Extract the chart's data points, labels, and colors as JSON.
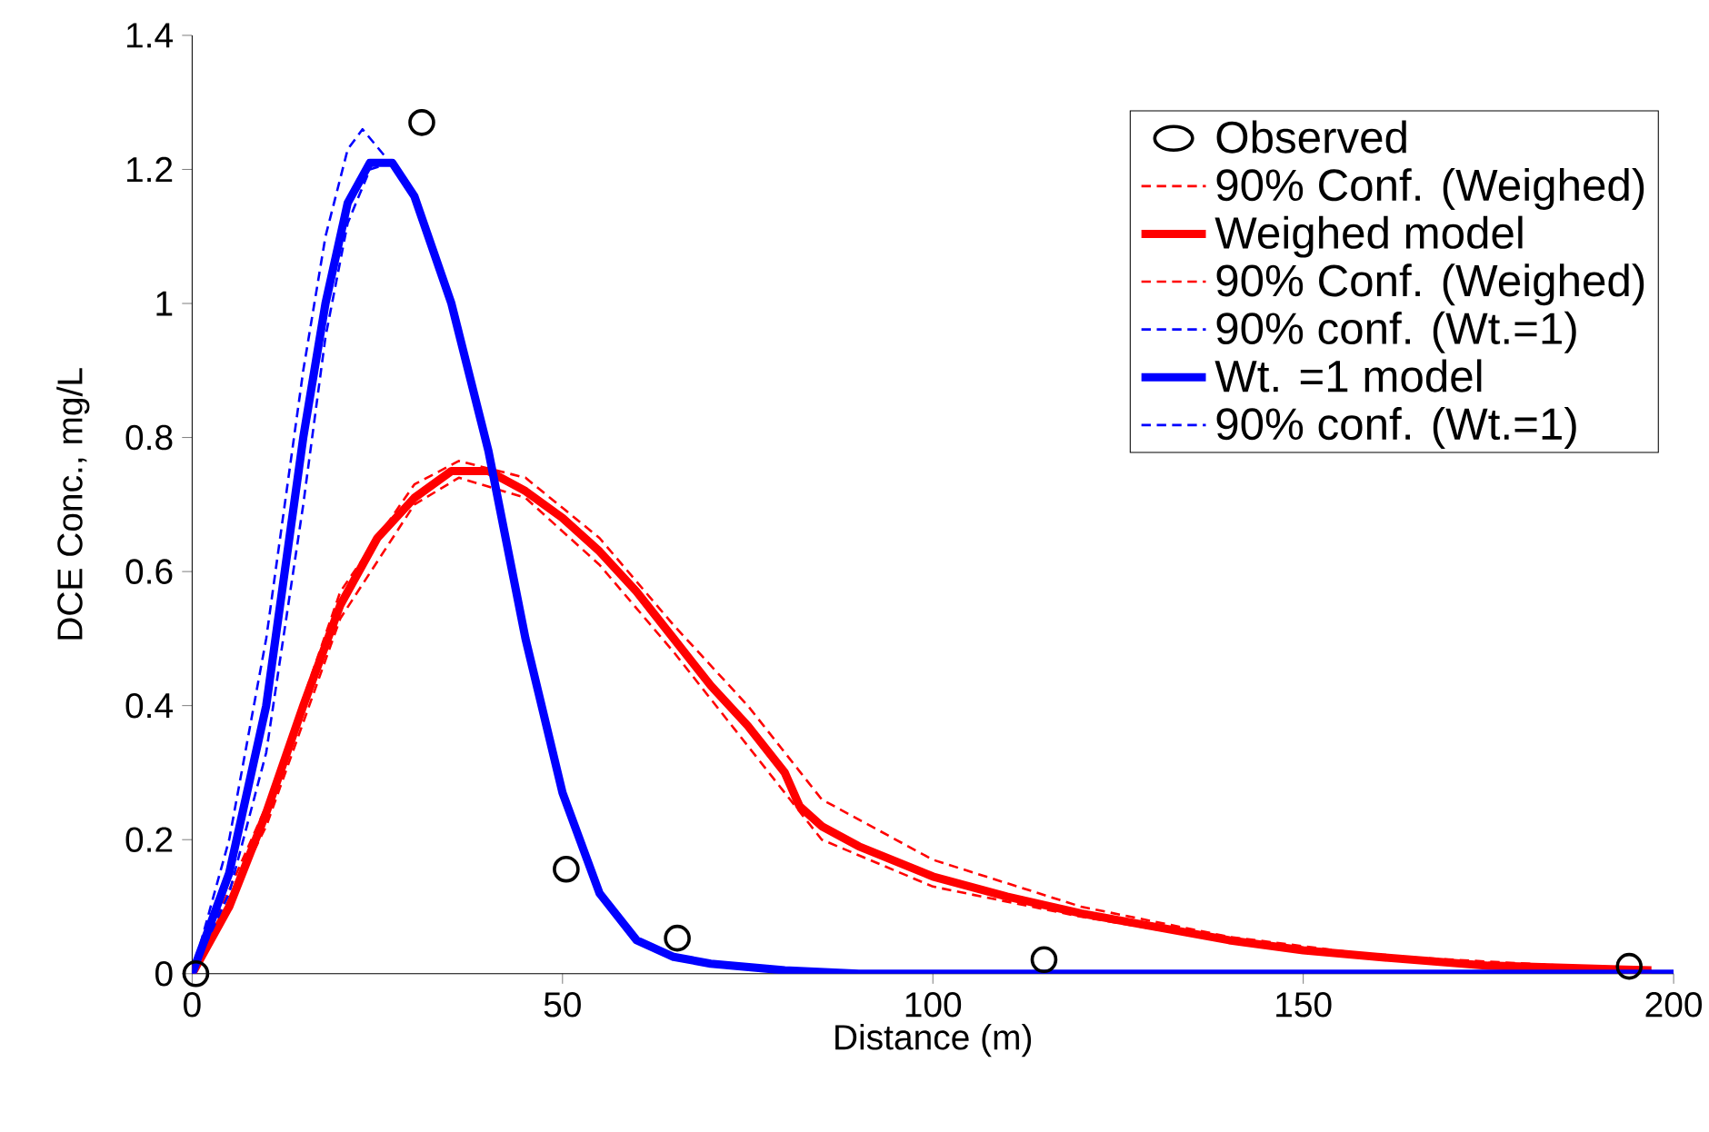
{
  "chart_data": {
    "type": "line",
    "xlabel": "Distance (m)",
    "ylabel": "DCE Conc., mg/L",
    "xlim": [
      0,
      200
    ],
    "xticks": [
      0,
      50,
      100,
      150,
      200
    ],
    "ylim": [
      0,
      1.4
    ],
    "yticks": [
      0,
      0.2,
      0.4,
      0.6,
      0.8,
      1,
      1.2,
      1.4
    ],
    "grid": false,
    "legend": "top right",
    "series": [
      {
        "name": "Observed",
        "type": "scatter",
        "marker": "circle",
        "color": "#000000",
        "x": [
          0.5,
          31,
          50.5,
          65.5,
          115,
          194
        ],
        "values": [
          0,
          1.27,
          0.156,
          0.053,
          0.021,
          0.011
        ]
      },
      {
        "name": "90% Conf. (Weighed)",
        "line_style": "dashed",
        "color": "#ff0000",
        "x": [
          0,
          10,
          20,
          30,
          36,
          45,
          55,
          65,
          75,
          80,
          85,
          100,
          120,
          140,
          160,
          197
        ],
        "values": [
          0,
          0.25,
          0.57,
          0.73,
          0.765,
          0.74,
          0.65,
          0.52,
          0.4,
          0.33,
          0.26,
          0.17,
          0.1,
          0.055,
          0.027,
          0.005
        ]
      },
      {
        "name": "Weighed model",
        "line_style": "solid",
        "color": "#ff0000",
        "x": [
          0,
          5,
          10,
          15,
          20,
          25,
          30,
          35,
          40,
          45,
          50,
          55,
          60,
          65,
          70,
          75,
          80,
          82,
          85,
          90,
          100,
          110,
          120,
          130,
          140,
          150,
          160,
          175,
          197
        ],
        "values": [
          0,
          0.1,
          0.24,
          0.4,
          0.55,
          0.65,
          0.71,
          0.75,
          0.75,
          0.72,
          0.68,
          0.63,
          0.57,
          0.5,
          0.43,
          0.37,
          0.3,
          0.25,
          0.22,
          0.19,
          0.145,
          0.115,
          0.09,
          0.07,
          0.05,
          0.035,
          0.025,
          0.012,
          0.005
        ]
      },
      {
        "name": "90% Conf. (Weighed)",
        "line_style": "dashed",
        "color": "#ff0000",
        "x": [
          0,
          10,
          20,
          30,
          36,
          45,
          55,
          65,
          75,
          80,
          85,
          100,
          120,
          140,
          160,
          197
        ],
        "values": [
          0,
          0.22,
          0.53,
          0.7,
          0.74,
          0.71,
          0.61,
          0.48,
          0.34,
          0.27,
          0.2,
          0.13,
          0.085,
          0.048,
          0.023,
          0.005
        ]
      },
      {
        "name": "90% conf. (Wt.=1)",
        "line_style": "dashed",
        "color": "#0000ff",
        "x": [
          0,
          5,
          10,
          15,
          18,
          21,
          23,
          26
        ],
        "values": [
          0,
          0.2,
          0.5,
          0.9,
          1.1,
          1.23,
          1.26,
          1.22
        ]
      },
      {
        "name": "Wt. =1 model",
        "line_style": "solid",
        "color": "#0000ff",
        "x": [
          0,
          5,
          10,
          15,
          18,
          21,
          24,
          27,
          30,
          35,
          40,
          45,
          50,
          55,
          60,
          65,
          70,
          80,
          90,
          200
        ],
        "values": [
          0,
          0.15,
          0.4,
          0.8,
          1.0,
          1.15,
          1.21,
          1.21,
          1.16,
          1.0,
          0.78,
          0.5,
          0.27,
          0.12,
          0.05,
          0.025,
          0.015,
          0.005,
          0,
          0
        ]
      },
      {
        "name": "90% conf. (Wt.=1)",
        "line_style": "dashed",
        "color": "#0000ff",
        "x": [
          0,
          5,
          10,
          15,
          18,
          21,
          24,
          27
        ],
        "values": [
          0,
          0.12,
          0.33,
          0.7,
          0.95,
          1.12,
          1.2,
          1.21
        ]
      }
    ]
  }
}
